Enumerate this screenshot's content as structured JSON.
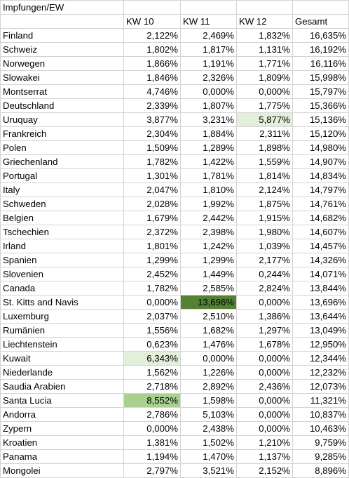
{
  "sheet": {
    "title": "Impfungen/EW",
    "headers": [
      "",
      "KW 10",
      "KW 11",
      "KW 12",
      "Gesamt"
    ],
    "highlight_colors": {
      "light": "#e2efda",
      "mid": "#a9d08e",
      "dark": "#548235"
    },
    "rows": [
      [
        "Finland",
        "2,122%",
        "2,469%",
        "1,832%",
        "16,635%"
      ],
      [
        "Schweiz",
        "1,802%",
        "1,817%",
        "1,131%",
        "16,192%"
      ],
      [
        "Norwegen",
        "1,866%",
        "1,191%",
        "1,771%",
        "16,116%"
      ],
      [
        "Slowakei",
        "1,846%",
        "2,326%",
        "1,809%",
        "15,998%"
      ],
      [
        "Montserrat",
        "4,746%",
        "0,000%",
        "0,000%",
        "15,797%"
      ],
      [
        "Deutschland",
        "2,339%",
        "1,807%",
        "1,775%",
        "15,366%"
      ],
      [
        "Uruquay",
        "3,877%",
        "3,231%",
        "5,877%",
        "15,136%"
      ],
      [
        "Frankreich",
        "2,304%",
        "1,884%",
        "2,311%",
        "15,120%"
      ],
      [
        "Polen",
        "1,509%",
        "1,289%",
        "1,898%",
        "14,980%"
      ],
      [
        "Griechenland",
        "1,782%",
        "1,422%",
        "1,559%",
        "14,907%"
      ],
      [
        "Portugal",
        "1,301%",
        "1,781%",
        "1,814%",
        "14,834%"
      ],
      [
        "Italy",
        "2,047%",
        "1,810%",
        "2,124%",
        "14,797%"
      ],
      [
        "Schweden",
        "2,028%",
        "1,992%",
        "1,875%",
        "14,761%"
      ],
      [
        "Belgien",
        "1,679%",
        "2,442%",
        "1,915%",
        "14,682%"
      ],
      [
        "Tschechien",
        "2,372%",
        "2,398%",
        "1,980%",
        "14,607%"
      ],
      [
        "Irland",
        "1,801%",
        "1,242%",
        "1,039%",
        "14,457%"
      ],
      [
        "Spanien",
        "1,299%",
        "1,299%",
        "2,177%",
        "14,326%"
      ],
      [
        "Slovenien",
        "2,452%",
        "1,449%",
        "0,244%",
        "14,071%"
      ],
      [
        "Canada",
        "1,782%",
        "2,585%",
        "2,824%",
        "13,844%"
      ],
      [
        "St. Kitts and Navis",
        "0,000%",
        "13,696%",
        "0,000%",
        "13,696%"
      ],
      [
        "Luxemburg",
        "2,037%",
        "2,510%",
        "1,386%",
        "13,644%"
      ],
      [
        "Rumänien",
        "1,556%",
        "1,682%",
        "1,297%",
        "13,049%"
      ],
      [
        "Liechtenstein",
        "0,623%",
        "1,476%",
        "1,678%",
        "12,950%"
      ],
      [
        "Kuwait",
        "6,343%",
        "0,000%",
        "0,000%",
        "12,344%"
      ],
      [
        "Niederlande",
        "1,562%",
        "1,226%",
        "0,000%",
        "12,232%"
      ],
      [
        "Saudia Arabien",
        "2,718%",
        "2,892%",
        "2,436%",
        "12,073%"
      ],
      [
        "Santa Lucia",
        "8,552%",
        "1,598%",
        "0,000%",
        "11,321%"
      ],
      [
        "Andorra",
        "2,786%",
        "5,103%",
        "0,000%",
        "10,837%"
      ],
      [
        "Zypern",
        "0,000%",
        "2,438%",
        "0,000%",
        "10,463%"
      ],
      [
        "Kroatien",
        "1,381%",
        "1,502%",
        "1,210%",
        "9,759%"
      ],
      [
        "Panama",
        "1,194%",
        "1,470%",
        "1,137%",
        "9,285%"
      ],
      [
        "Mongolei",
        "2,797%",
        "3,521%",
        "2,152%",
        "8,896%"
      ]
    ],
    "highlights": [
      {
        "row": 6,
        "col": 3,
        "level": "light"
      },
      {
        "row": 19,
        "col": 2,
        "level": "dark"
      },
      {
        "row": 23,
        "col": 1,
        "level": "light"
      },
      {
        "row": 26,
        "col": 1,
        "level": "mid"
      }
    ]
  }
}
